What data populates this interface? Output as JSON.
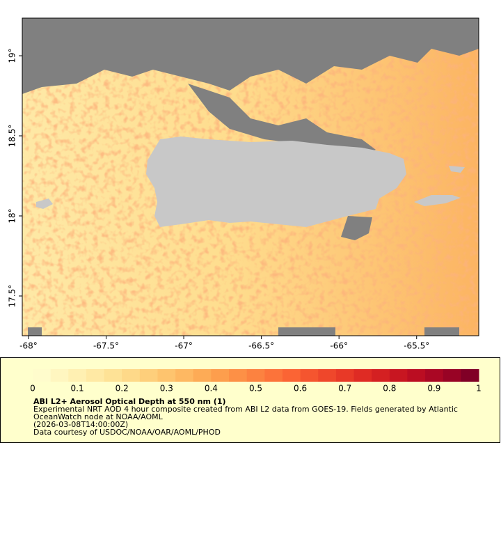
{
  "map": {
    "xlim": [
      -68.04,
      -65.1
    ],
    "ylim": [
      17.252,
      19.235
    ],
    "xticks": [
      {
        "value": -68,
        "label": "-68°"
      },
      {
        "value": -67.5,
        "label": "-67.5°"
      },
      {
        "value": -67,
        "label": "-67°"
      },
      {
        "value": -66.5,
        "label": "-66.5°"
      },
      {
        "value": -66,
        "label": "-66°"
      },
      {
        "value": -65.5,
        "label": "-65.5°"
      }
    ],
    "yticks": [
      {
        "value": 17.5,
        "label": "17.5°"
      },
      {
        "value": 18,
        "label": "18°"
      },
      {
        "value": 18.5,
        "label": "18.5°"
      },
      {
        "value": 19,
        "label": "19°"
      }
    ]
  },
  "colorbar": {
    "lim": [
      0,
      1
    ],
    "ticks": [
      0,
      0.1,
      0.2,
      0.3,
      0.4,
      0.5,
      0.6,
      0.7,
      0.8,
      0.9,
      1
    ],
    "colors": [
      "#fffccc",
      "#fff6c0",
      "#fff0b2",
      "#ffe9a4",
      "#fee296",
      "#fed989",
      "#fecf7b",
      "#fec46e",
      "#feb862",
      "#fdab56",
      "#fd9e4d",
      "#fd9046",
      "#fc8240",
      "#fc733a",
      "#fb6434",
      "#f5552f",
      "#ef472b",
      "#e83927",
      "#df2b24",
      "#d42022",
      "#c81621",
      "#bb0d22",
      "#aa0724",
      "#980325",
      "#800026"
    ]
  },
  "legend": {
    "title": "ABI L2+ Aerosol Optical Depth at 550 nm (1)",
    "lines": [
      "Experimental NRT AOD 4 hour composite created from ABI L2 data from GOES-19. Fields generated by Atlantic",
      "OceanWatch node at NOAA/AOML",
      "(2026-03-08T14:00:00Z)",
      "Data courtesy of USDOC/NOAA/OAR/AOML/PHOD"
    ]
  }
}
